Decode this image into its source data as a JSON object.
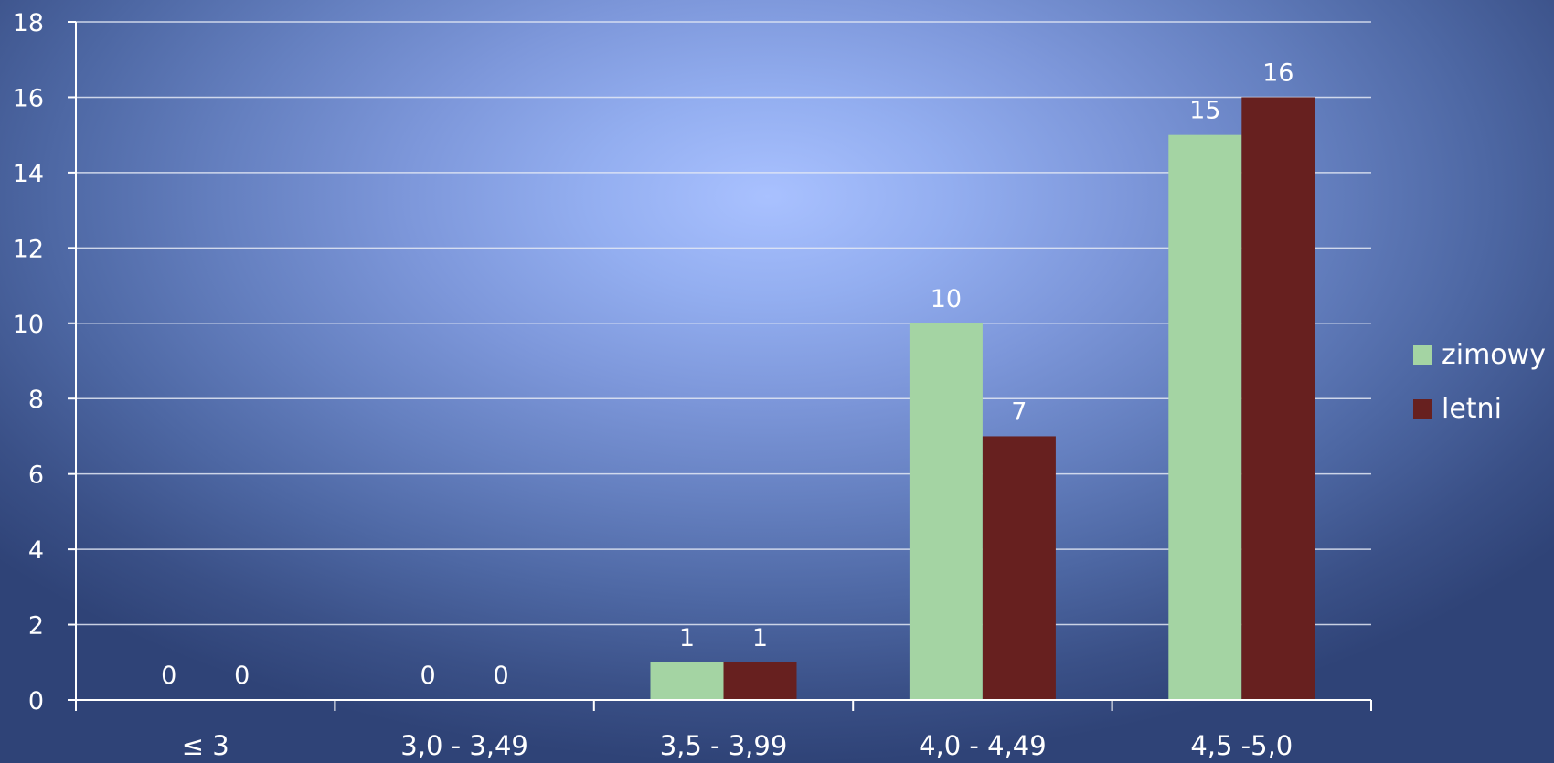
{
  "chart_data": {
    "type": "bar",
    "categories": [
      "≤ 3",
      "3,0 - 3,49",
      "3,5 - 3,99",
      "4,0 - 4,49",
      "4,5 -5,0"
    ],
    "series": [
      {
        "name": "zimowy",
        "values": [
          0,
          0,
          1,
          10,
          15
        ],
        "color": "#a4d4a3"
      },
      {
        "name": "letni",
        "values": [
          0,
          0,
          1,
          7,
          16
        ],
        "color": "#67201f"
      }
    ],
    "ylim": [
      0,
      18
    ],
    "yticks": [
      0,
      2,
      4,
      6,
      8,
      10,
      12,
      14,
      16,
      18
    ],
    "grid": true,
    "legend_position": "right",
    "data_labels": true,
    "title": "",
    "xlabel": "",
    "ylabel": ""
  }
}
